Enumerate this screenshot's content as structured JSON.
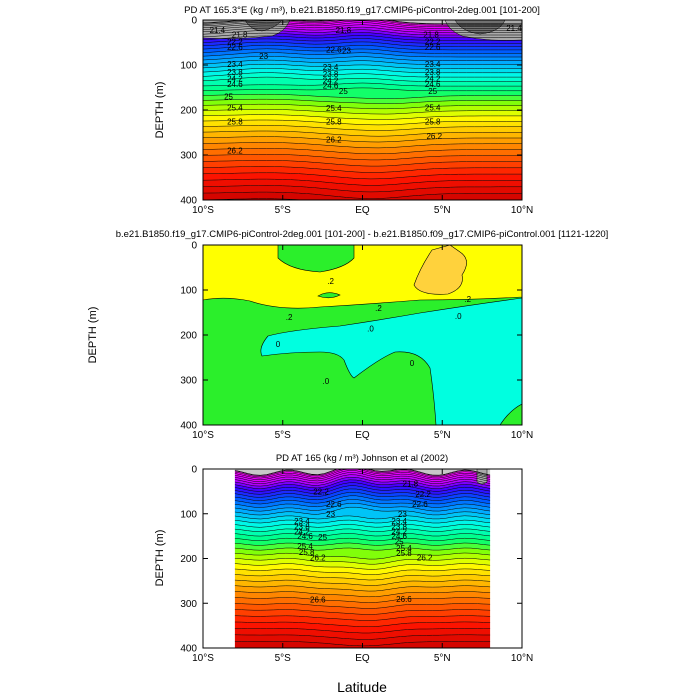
{
  "figure": {
    "xlabel": "Latitude"
  },
  "chart_data": [
    {
      "type": "heatmap",
      "title": "PD AT 165.3°E (kg / m³), b.e21.B1850.f19_g17.CMIP6-piControl-2deg.001 [101-200]",
      "xlabel": "",
      "ylabel": "DEPTH (m)",
      "xlim": [
        -10,
        10
      ],
      "ylim": [
        400,
        0
      ],
      "xticks": [
        "10°S",
        "5°S",
        "EQ",
        "5°N",
        "10°N"
      ],
      "yticks": [
        "0",
        "100",
        "200",
        "300",
        "400"
      ],
      "contour_interval": 0.2,
      "contour_labels": [
        {
          "lat": -9.1,
          "depth": 22,
          "text": "21.4"
        },
        {
          "lat": -7.7,
          "depth": 32,
          "text": "21.8"
        },
        {
          "lat": -8.0,
          "depth": 48,
          "text": "22.2"
        },
        {
          "lat": -8.0,
          "depth": 60,
          "text": "22.6"
        },
        {
          "lat": -8.0,
          "depth": 98,
          "text": "23.4"
        },
        {
          "lat": -8.0,
          "depth": 116,
          "text": "23.8"
        },
        {
          "lat": -8.0,
          "depth": 130,
          "text": "24.2"
        },
        {
          "lat": -8.0,
          "depth": 142,
          "text": "24.6"
        },
        {
          "lat": -8.4,
          "depth": 170,
          "text": "25"
        },
        {
          "lat": -8.0,
          "depth": 194,
          "text": "25.4"
        },
        {
          "lat": -8.0,
          "depth": 226,
          "text": "25.8"
        },
        {
          "lat": -8.0,
          "depth": 290,
          "text": "26.2"
        },
        {
          "lat": -6.2,
          "depth": 80,
          "text": "23"
        },
        {
          "lat": -1.2,
          "depth": 22,
          "text": "21.8"
        },
        {
          "lat": -1.8,
          "depth": 65,
          "text": "22.6"
        },
        {
          "lat": -2.0,
          "depth": 104,
          "text": "23.4"
        },
        {
          "lat": -2.0,
          "depth": 120,
          "text": "23.8"
        },
        {
          "lat": -2.0,
          "depth": 134,
          "text": "24.2"
        },
        {
          "lat": -2.0,
          "depth": 146,
          "text": "24.6"
        },
        {
          "lat": -1.2,
          "depth": 158,
          "text": "25"
        },
        {
          "lat": -1.8,
          "depth": 196,
          "text": "25.4"
        },
        {
          "lat": -1.8,
          "depth": 226,
          "text": "25.8"
        },
        {
          "lat": -1.8,
          "depth": 266,
          "text": "26.2"
        },
        {
          "lat": -1.0,
          "depth": 68,
          "text": "23"
        },
        {
          "lat": 4.3,
          "depth": 32,
          "text": "21.8"
        },
        {
          "lat": 4.4,
          "depth": 48,
          "text": "22.2"
        },
        {
          "lat": 4.4,
          "depth": 60,
          "text": "22.6"
        },
        {
          "lat": 4.4,
          "depth": 98,
          "text": "23.4"
        },
        {
          "lat": 4.4,
          "depth": 116,
          "text": "23.8"
        },
        {
          "lat": 4.4,
          "depth": 130,
          "text": "24.2"
        },
        {
          "lat": 4.4,
          "depth": 142,
          "text": "24.6"
        },
        {
          "lat": 4.4,
          "depth": 158,
          "text": "25"
        },
        {
          "lat": 4.4,
          "depth": 194,
          "text": "25.4"
        },
        {
          "lat": 4.4,
          "depth": 226,
          "text": "25.8"
        },
        {
          "lat": 4.5,
          "depth": 258,
          "text": "26.2"
        },
        {
          "lat": 9.5,
          "depth": 18,
          "text": "21.4"
        }
      ]
    },
    {
      "type": "heatmap",
      "title": "b.e21.B1850.f19_g17.CMIP6-piControl-2deg.001 [101-200] - b.e21.B1850.f09_g17.CMIP6-piControl.001 [1121-1220]",
      "xlabel": "",
      "ylabel": "DEPTH (m)",
      "xlim": [
        -10,
        10
      ],
      "ylim": [
        400,
        0
      ],
      "xticks": [
        "10°S",
        "5°S",
        "EQ",
        "5°N",
        "10°N"
      ],
      "yticks": [
        "0",
        "100",
        "200",
        "300",
        "400"
      ],
      "contour_levels": [
        0,
        0.2,
        0.4
      ],
      "contour_labels": [
        {
          "lat": -2.0,
          "depth": 80,
          "text": ".2"
        },
        {
          "lat": -4.6,
          "depth": 160,
          "text": ".2"
        },
        {
          "lat": 1.0,
          "depth": 140,
          "text": ".2"
        },
        {
          "lat": 6.6,
          "depth": 120,
          "text": ".2"
        },
        {
          "lat": 0.5,
          "depth": 186,
          "text": ".0"
        },
        {
          "lat": 6.0,
          "depth": 158,
          "text": ".0"
        },
        {
          "lat": -5.3,
          "depth": 220,
          "text": "0"
        },
        {
          "lat": 3.1,
          "depth": 262,
          "text": "0"
        },
        {
          "lat": -2.3,
          "depth": 302,
          "text": ".0"
        }
      ]
    },
    {
      "type": "heatmap",
      "title": "PD AT 165 (kg / m³) Johnson et al (2002)",
      "xlabel": "Latitude",
      "ylabel": "DEPTH (m)",
      "xlim": [
        -10,
        10
      ],
      "ylim": [
        400,
        0
      ],
      "data_extent": [
        -8,
        8
      ],
      "xticks": [
        "10°S",
        "5°S",
        "EQ",
        "5°N",
        "10°N"
      ],
      "yticks": [
        "0",
        "100",
        "200",
        "300",
        "400"
      ],
      "contour_interval": 0.2,
      "contour_labels": [
        {
          "lat": -2.6,
          "depth": 50,
          "text": "22.2"
        },
        {
          "lat": -1.8,
          "depth": 78,
          "text": "22.6"
        },
        {
          "lat": -2.0,
          "depth": 100,
          "text": "23"
        },
        {
          "lat": -3.8,
          "depth": 116,
          "text": "23.4"
        },
        {
          "lat": -3.8,
          "depth": 128,
          "text": "23.8"
        },
        {
          "lat": -3.8,
          "depth": 140,
          "text": "24.2"
        },
        {
          "lat": -3.6,
          "depth": 150,
          "text": "24.6"
        },
        {
          "lat": -2.5,
          "depth": 152,
          "text": "25"
        },
        {
          "lat": -3.6,
          "depth": 172,
          "text": "25.4"
        },
        {
          "lat": -3.5,
          "depth": 186,
          "text": "25.8"
        },
        {
          "lat": -2.8,
          "depth": 198,
          "text": "26.2"
        },
        {
          "lat": -2.8,
          "depth": 292,
          "text": "26.6"
        },
        {
          "lat": 3.0,
          "depth": 32,
          "text": "21.8"
        },
        {
          "lat": 3.8,
          "depth": 56,
          "text": "22.2"
        },
        {
          "lat": 3.6,
          "depth": 78,
          "text": "22.6"
        },
        {
          "lat": 2.5,
          "depth": 100,
          "text": "23"
        },
        {
          "lat": 2.3,
          "depth": 116,
          "text": "23.4"
        },
        {
          "lat": 2.3,
          "depth": 128,
          "text": "23.8"
        },
        {
          "lat": 2.3,
          "depth": 140,
          "text": "24.2"
        },
        {
          "lat": 2.3,
          "depth": 150,
          "text": "24.6"
        },
        {
          "lat": 2.3,
          "depth": 162,
          "text": "25"
        },
        {
          "lat": 2.6,
          "depth": 176,
          "text": "25.4"
        },
        {
          "lat": 2.6,
          "depth": 188,
          "text": "25.8"
        },
        {
          "lat": 3.9,
          "depth": 198,
          "text": "26.2"
        },
        {
          "lat": 2.6,
          "depth": 290,
          "text": "26.6"
        }
      ]
    }
  ]
}
